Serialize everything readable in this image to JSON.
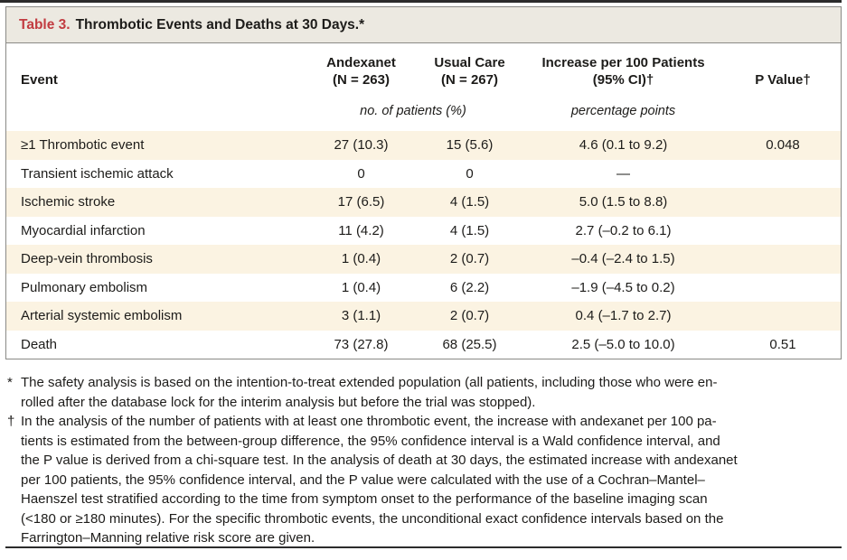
{
  "title": {
    "label": "Table 3.",
    "text": "Thrombotic Events and Deaths at 30 Days.*"
  },
  "colors": {
    "title_label_red": "#c23b40",
    "title_bar_background": "#ece9e1",
    "shaded_row_background": "#fbf3e2",
    "box_border": "#8a8a86",
    "rule_dark": "#2b2b2b",
    "text": "#1d1c1a"
  },
  "table": {
    "columns": {
      "event": "Event",
      "andexanet_line1": "Andexanet",
      "andexanet_line2": "(N = 263)",
      "usual_care_line1": "Usual Care",
      "usual_care_line2": "(N = 267)",
      "increase_line1": "Increase per 100 Patients",
      "increase_line2": "(95% CI)†",
      "p_value": "P Value†"
    },
    "subheaders": {
      "counts_units": "no. of patients (%)",
      "increase_units": "percentage points"
    },
    "rows": [
      {
        "event": "≥1 Thrombotic event",
        "andexanet": "27 (10.3)",
        "usual_care": "15 (5.6)",
        "increase": "4.6 (0.1 to 9.2)",
        "p_value": "0.048"
      },
      {
        "event": "Transient ischemic attack",
        "andexanet": "0",
        "usual_care": "0",
        "increase": "—",
        "p_value": ""
      },
      {
        "event": "Ischemic stroke",
        "andexanet": "17 (6.5)",
        "usual_care": "4 (1.5)",
        "increase": "5.0 (1.5 to 8.8)",
        "p_value": ""
      },
      {
        "event": "Myocardial infarction",
        "andexanet": "11 (4.2)",
        "usual_care": "4 (1.5)",
        "increase": "2.7 (–0.2 to 6.1)",
        "p_value": ""
      },
      {
        "event": "Deep-vein thrombosis",
        "andexanet": "1 (0.4)",
        "usual_care": "2 (0.7)",
        "increase": "–0.4 (–2.4 to 1.5)",
        "p_value": ""
      },
      {
        "event": "Pulmonary embolism",
        "andexanet": "1 (0.4)",
        "usual_care": "6 (2.2)",
        "increase": "–1.9 (–4.5 to 0.2)",
        "p_value": ""
      },
      {
        "event": "Arterial systemic embolism",
        "andexanet": "3 (1.1)",
        "usual_care": "2 (0.7)",
        "increase": "0.4 (–1.7 to 2.7)",
        "p_value": ""
      },
      {
        "event": "Death",
        "andexanet": "73 (27.8)",
        "usual_care": "68 (25.5)",
        "increase": "2.5 (–5.0 to 10.0)",
        "p_value": "0.51"
      }
    ]
  },
  "footnotes": [
    {
      "marker": "*",
      "lines": [
        "The safety analysis is based on the intention-to-treat extended population (all patients, including those who were en-",
        "rolled after the database lock for the interim analysis but before the trial was stopped)."
      ]
    },
    {
      "marker": "†",
      "lines": [
        "In the analysis of the number of patients with at least one thrombotic event, the increase with andexanet per 100 pa-",
        "tients is estimated from the between-group difference, the 95% confidence interval is a Wald confidence interval, and",
        "the P value is derived from a chi-square test. In the analysis of death at 30 days, the estimated increase with andexanet",
        "per 100 patients, the 95% confidence interval, and the P value were calculated with the use of a Cochran–Mantel–",
        "Haenszel test stratified according to the time from symptom onset to the performance of the baseline imaging scan",
        "(<180 or ≥180 minutes). For the specific thrombotic events, the unconditional exact confidence intervals based on the",
        "Farrington–Manning relative risk score are given."
      ]
    }
  ]
}
